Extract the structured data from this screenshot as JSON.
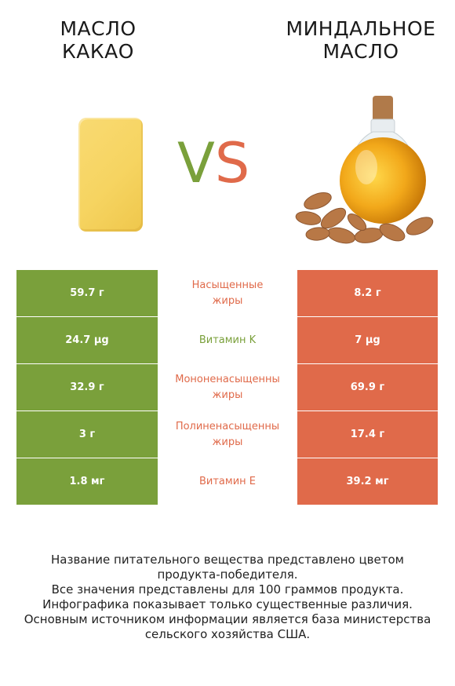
{
  "header": {
    "left_title": "МАСЛО\nКАКАО",
    "right_title": "МИНДАЛЬНОЕ\nМАСЛО",
    "vs_v": "V",
    "vs_s": "S"
  },
  "colors": {
    "left_accent": "#7aa03b",
    "right_accent": "#e06a4a"
  },
  "rows": [
    {
      "left": "59.7 г",
      "name_line1": "Насыщенные",
      "name_line2": "жиры",
      "right": "8.2 г",
      "winner_color": "#e06a4a"
    },
    {
      "left": "24.7 µg",
      "name_line1": "Витамин K",
      "name_line2": "",
      "right": "7 µg",
      "winner_color": "#7aa03b"
    },
    {
      "left": "32.9 г",
      "name_line1": "Мононенасыщенны",
      "name_line2": "жиры",
      "right": "69.9 г",
      "winner_color": "#e06a4a"
    },
    {
      "left": "3 г",
      "name_line1": "Полиненасыщенны",
      "name_line2": "жиры",
      "right": "17.4 г",
      "winner_color": "#e06a4a"
    },
    {
      "left": "1.8 мг",
      "name_line1": "Витамин E",
      "name_line2": "",
      "right": "39.2 мг",
      "winner_color": "#e06a4a"
    }
  ],
  "images": {
    "left": "cocoa-butter-bar",
    "right": "almond-oil-bottle-with-almonds"
  },
  "footer": {
    "line1": "Название питательного вещества представлено цветом",
    "line2": "продукта-победителя.",
    "line3": "Все значения представлены для 100 граммов продукта.",
    "line4": "Инфографика показывает только существенные различия.",
    "line5": "Основным источником информации является база министерства",
    "line6": "сельского хозяйства США."
  }
}
